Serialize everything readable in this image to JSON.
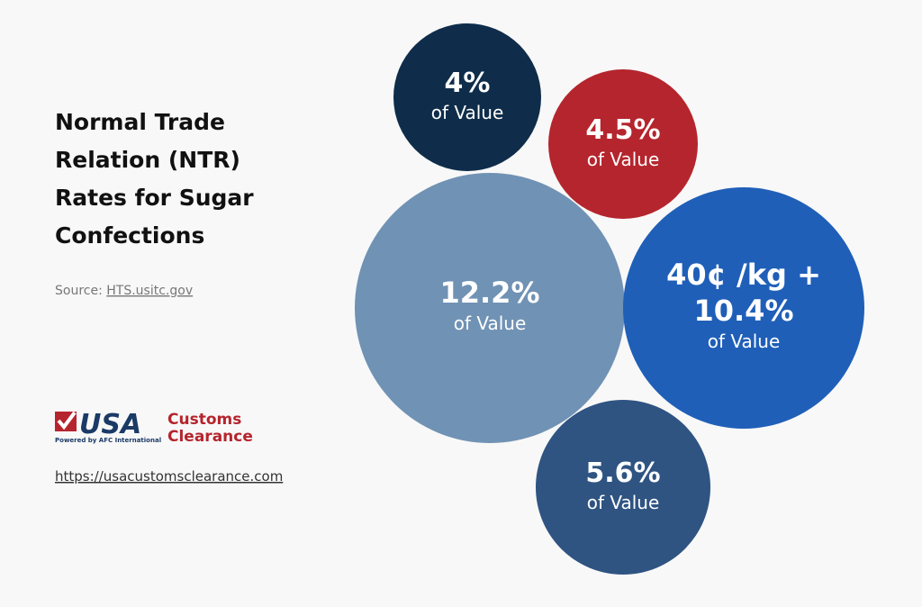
{
  "title_lines": [
    "Normal Trade",
    "Relation (NTR)",
    "Rates for Sugar",
    "Confections"
  ],
  "source": {
    "label": "Source:",
    "link": "HTS.usitc.gov"
  },
  "logo": {
    "usa": "USA",
    "customs": "Customs",
    "clearance": "Clearance",
    "tagline": "Powered by AFC International"
  },
  "url": "https://usacustomsclearance.com",
  "bubbles": [
    {
      "rate_lines": [
        "4%"
      ],
      "caption": "of Value"
    },
    {
      "rate_lines": [
        "4.5%"
      ],
      "caption": "of Value"
    },
    {
      "rate_lines": [
        "12.2%"
      ],
      "caption": "of Value"
    },
    {
      "rate_lines": [
        "40¢ /kg +",
        "10.4%"
      ],
      "caption": "of Value"
    },
    {
      "rate_lines": [
        "5.6%"
      ],
      "caption": "of Value"
    }
  ]
}
